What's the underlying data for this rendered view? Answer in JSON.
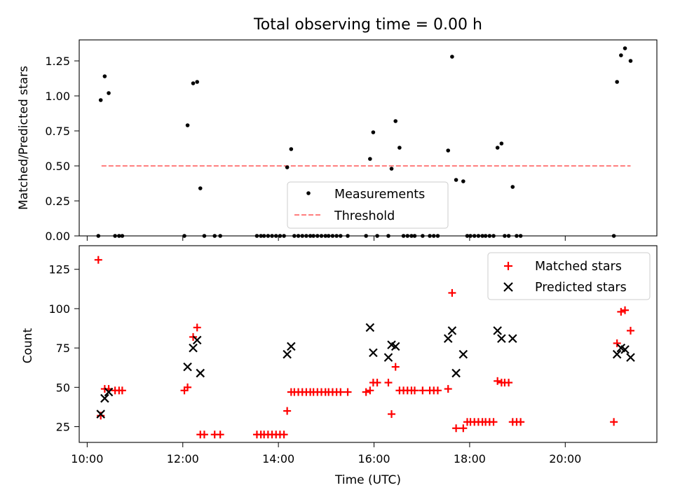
{
  "chart_data": [
    {
      "type": "scatter",
      "title": "Total observing time = 0.00 h",
      "xlabel": "",
      "ylabel": "Matched/Predicted stars",
      "ylim": [
        0,
        1.4
      ],
      "yticks": [
        "0.00",
        "0.25",
        "0.50",
        "0.75",
        "1.00",
        "1.25"
      ],
      "grid": false,
      "legend": {
        "position": "lower center",
        "entries": [
          "Measurements",
          "Threshold"
        ]
      },
      "series": [
        {
          "name": "Measurements",
          "marker": "dot",
          "color": "#000000",
          "x": [
            "10:14",
            "10:17",
            "10:22",
            "10:27",
            "10:35",
            "10:40",
            "10:44",
            "12:02",
            "12:06",
            "12:13",
            "12:18",
            "12:22",
            "12:27",
            "12:40",
            "12:47",
            "13:33",
            "13:38",
            "13:42",
            "13:47",
            "13:52",
            "13:57",
            "14:02",
            "14:07",
            "14:11",
            "14:16",
            "14:20",
            "14:25",
            "14:30",
            "14:35",
            "14:40",
            "14:44",
            "14:49",
            "14:54",
            "14:59",
            "15:03",
            "15:08",
            "15:13",
            "15:18",
            "15:27",
            "15:50",
            "15:55",
            "15:59",
            "16:04",
            "16:18",
            "16:22",
            "16:27",
            "16:32",
            "16:37",
            "16:42",
            "16:47",
            "16:51",
            "17:01",
            "17:10",
            "17:15",
            "17:20",
            "17:33",
            "17:38",
            "17:43",
            "17:52",
            "17:57",
            "18:01",
            "18:06",
            "18:11",
            "18:16",
            "18:20",
            "18:25",
            "18:30",
            "18:35",
            "18:40",
            "18:44",
            "18:49",
            "18:54",
            "18:59",
            "19:04",
            "21:01",
            "21:05",
            "21:10",
            "21:15",
            "21:22"
          ],
          "y": [
            0,
            0.97,
            1.14,
            1.02,
            0,
            0,
            0,
            0,
            0.79,
            1.09,
            1.1,
            0.34,
            0,
            0,
            0,
            0,
            0,
            0,
            0,
            0,
            0,
            0,
            0,
            0.49,
            0.62,
            0,
            0,
            0,
            0,
            0,
            0,
            0,
            0,
            0,
            0,
            0,
            0,
            0,
            0,
            0,
            0.55,
            0.74,
            0,
            0,
            0.48,
            0.82,
            0.63,
            0,
            0,
            0,
            0,
            0,
            0,
            0,
            0,
            0.61,
            1.28,
            0.4,
            0.39,
            0,
            0,
            0,
            0,
            0,
            0,
            0,
            0,
            0.63,
            0.66,
            0,
            0,
            0.35,
            0,
            0,
            0,
            1.1,
            1.29,
            1.34,
            1.25
          ]
        },
        {
          "name": "Threshold",
          "style": "dashed",
          "color": "#ff7f7f",
          "x": [
            "10:18",
            "21:22"
          ],
          "y": [
            0.5,
            0.5
          ]
        }
      ]
    },
    {
      "type": "scatter",
      "title": "",
      "xlabel": "Time (UTC)",
      "ylabel": "Count",
      "ylim": [
        15,
        140
      ],
      "yticks": [
        "25",
        "50",
        "75",
        "100",
        "125"
      ],
      "xticks": [
        "10:00",
        "12:00",
        "14:00",
        "16:00",
        "18:00",
        "20:00"
      ],
      "grid": false,
      "legend": {
        "position": "upper right",
        "entries": [
          "Matched stars",
          "Predicted stars"
        ]
      },
      "series": [
        {
          "name": "Matched stars",
          "marker": "plus",
          "color": "#ff0000",
          "x": [
            "10:14",
            "10:17",
            "10:22",
            "10:27",
            "10:35",
            "10:40",
            "10:44",
            "12:02",
            "12:06",
            "12:13",
            "12:18",
            "12:22",
            "12:27",
            "12:40",
            "12:47",
            "13:33",
            "13:38",
            "13:42",
            "13:47",
            "13:52",
            "13:57",
            "14:02",
            "14:07",
            "14:11",
            "14:16",
            "14:20",
            "14:25",
            "14:30",
            "14:35",
            "14:40",
            "14:44",
            "14:49",
            "14:54",
            "14:59",
            "15:03",
            "15:08",
            "15:13",
            "15:18",
            "15:27",
            "15:50",
            "15:55",
            "15:59",
            "16:04",
            "16:18",
            "16:22",
            "16:27",
            "16:32",
            "16:37",
            "16:42",
            "16:47",
            "16:51",
            "17:01",
            "17:10",
            "17:15",
            "17:20",
            "17:33",
            "17:38",
            "17:43",
            "17:52",
            "17:57",
            "18:01",
            "18:06",
            "18:11",
            "18:16",
            "18:20",
            "18:25",
            "18:30",
            "18:35",
            "18:40",
            "18:44",
            "18:49",
            "18:54",
            "18:59",
            "19:04",
            "21:01",
            "21:05",
            "21:10",
            "21:15",
            "21:22"
          ],
          "y": [
            131,
            32,
            49,
            49,
            48,
            48,
            48,
            48,
            50,
            82,
            88,
            20,
            20,
            20,
            20,
            20,
            20,
            20,
            20,
            20,
            20,
            20,
            20,
            35,
            47,
            47,
            47,
            47,
            47,
            47,
            47,
            47,
            47,
            47,
            47,
            47,
            47,
            47,
            47,
            47,
            48,
            53,
            53,
            53,
            33,
            63,
            48,
            48,
            48,
            48,
            48,
            48,
            48,
            48,
            48,
            49,
            110,
            24,
            24,
            28,
            28,
            28,
            28,
            28,
            28,
            28,
            28,
            54,
            53,
            53,
            53,
            28,
            28,
            28,
            28,
            78,
            98,
            99,
            86
          ]
        },
        {
          "name": "Predicted stars",
          "marker": "x",
          "color": "#000000",
          "x": [
            "10:17",
            "10:22",
            "10:27",
            "12:06",
            "12:13",
            "12:18",
            "12:22",
            "14:11",
            "14:16",
            "15:55",
            "15:59",
            "16:18",
            "16:22",
            "16:27",
            "17:33",
            "17:38",
            "17:43",
            "17:52",
            "18:35",
            "18:40",
            "18:54",
            "21:05",
            "21:10",
            "21:15",
            "21:22"
          ],
          "y": [
            33,
            43,
            47,
            63,
            75,
            80,
            59,
            71,
            76,
            88,
            72,
            69,
            77,
            76,
            81,
            86,
            59,
            71,
            86,
            81,
            81,
            71,
            75,
            74,
            69
          ]
        }
      ]
    }
  ]
}
